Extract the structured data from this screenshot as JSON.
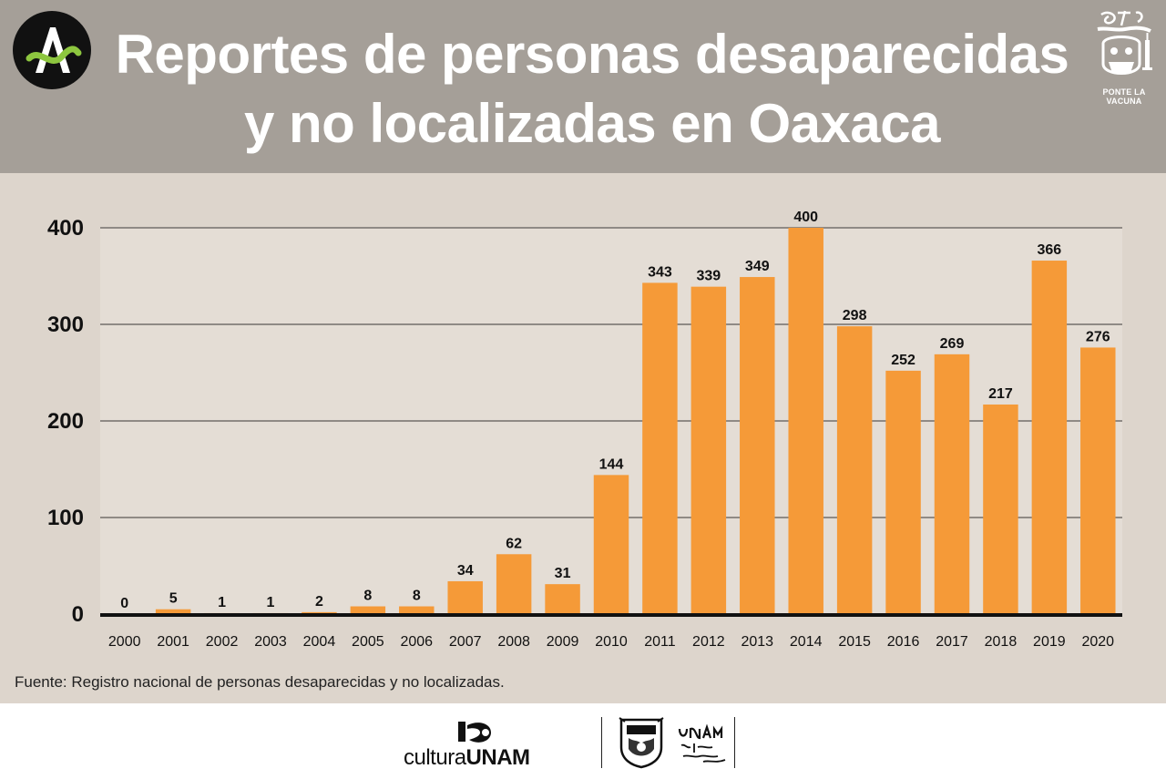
{
  "header": {
    "title_line1": "Reportes de personas desaparecidas",
    "title_line2": "y no localizadas en Oaxaca",
    "puma_caption": "PONTE LA VACUNA",
    "bg_color": "#a59f98",
    "logo_icon": "a-logo-icon",
    "badge_icon": "ponte-puma-icon"
  },
  "chart_data": {
    "type": "bar",
    "title": "Reportes de personas desaparecidas y no localizadas en Oaxaca",
    "xlabel": "",
    "ylabel": "",
    "categories": [
      "2000",
      "2001",
      "2002",
      "2003",
      "2004",
      "2005",
      "2006",
      "2007",
      "2008",
      "2009",
      "2010",
      "2011",
      "2012",
      "2013",
      "2014",
      "2015",
      "2016",
      "2017",
      "2018",
      "2019",
      "2020"
    ],
    "values": [
      0,
      5,
      1,
      1,
      2,
      8,
      8,
      34,
      62,
      31,
      144,
      343,
      339,
      349,
      400,
      298,
      252,
      269,
      217,
      366,
      276
    ],
    "ylim": [
      0,
      400
    ],
    "yticks": [
      0,
      100,
      200,
      300,
      400
    ],
    "grid": true,
    "data_labels": true,
    "legend": "none",
    "bar_color": "#f59a38",
    "plot_bg": "#e4ddd5",
    "panel_bg": "#ddd5cc"
  },
  "source": {
    "text": "Fuente: Registro nacional de personas desaparecidas y no localizadas."
  },
  "footer": {
    "cultura_light": "cultura",
    "cultura_bold": "UNAM",
    "unam_icon": "unam-seal-icon",
    "slogan_icon": "unam-slogan-icon"
  }
}
